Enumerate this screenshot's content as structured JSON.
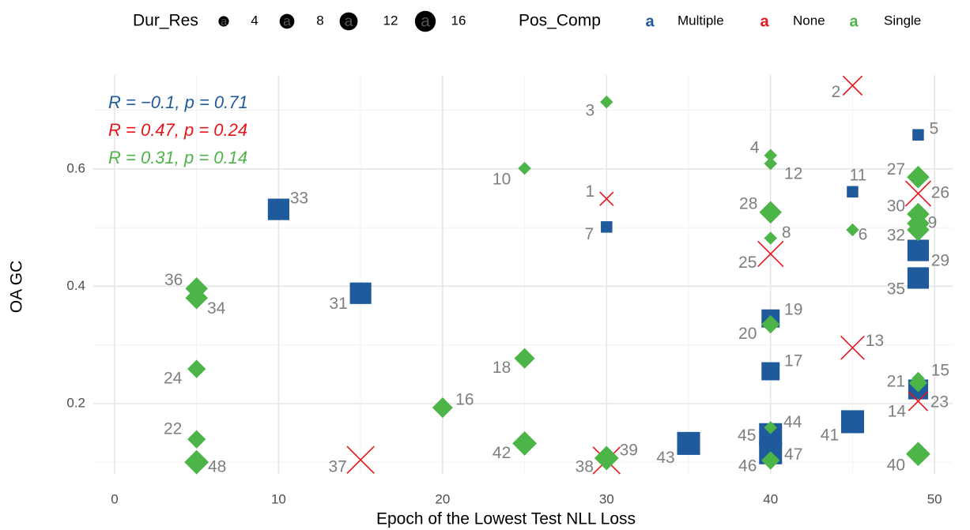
{
  "chart_data": {
    "type": "scatter",
    "x_label": "Epoch of the Lowest Test NLL Loss",
    "y_label": "OA GC",
    "xlim": [
      -1.3,
      51.1
    ],
    "ylim": [
      0.08,
      0.76
    ],
    "xticks": [
      0,
      10,
      20,
      30,
      40,
      50
    ],
    "yticks": [
      0.2,
      0.4,
      0.6
    ],
    "grid": true,
    "legend_position": "top",
    "legend_key_label": "a",
    "size_legend": {
      "title": "Dur_Res",
      "values": [
        4,
        8,
        12,
        16
      ]
    },
    "color_legend_title": "Pos_Comp",
    "series": [
      {
        "name": "Multiple",
        "color": "#1f5a9c",
        "shape": "square",
        "x": [
          49,
          45,
          30,
          10,
          15,
          49,
          49,
          40,
          40,
          49,
          45,
          35,
          40,
          40
        ],
        "y": [
          0.658,
          0.561,
          0.501,
          0.531,
          0.388,
          0.461,
          0.414,
          0.345,
          0.255,
          0.224,
          0.169,
          0.132,
          0.147,
          0.116
        ],
        "sizes": [
          4,
          4,
          4,
          14,
          14,
          14,
          14,
          10,
          10,
          12,
          16,
          16,
          16,
          16
        ],
        "labels": [
          5,
          11,
          7,
          33,
          31,
          29,
          35,
          19,
          17,
          23,
          41,
          43,
          45,
          47
        ]
      },
      {
        "name": "None",
        "color": "#e8141c",
        "shape": "x",
        "x": [
          45,
          30,
          49,
          40,
          45,
          49,
          15,
          30
        ],
        "y": [
          0.742,
          0.549,
          0.558,
          0.455,
          0.295,
          0.204,
          0.104,
          0.103
        ],
        "sizes": [
          8,
          4,
          14,
          14,
          12,
          8,
          16,
          16
        ],
        "labels": [
          2,
          1,
          26,
          25,
          13,
          14,
          37,
          38
        ]
      },
      {
        "name": "Single",
        "color": "#4db548",
        "shape": "diamond",
        "x": [
          30,
          25,
          40,
          40,
          49,
          40,
          49,
          49,
          49,
          45,
          40,
          5,
          5,
          40,
          5,
          25,
          49,
          49,
          20,
          5,
          40,
          25,
          5,
          30,
          40,
          49
        ],
        "y": [
          0.714,
          0.601,
          0.623,
          0.609,
          0.586,
          0.526,
          0.523,
          0.507,
          0.496,
          0.496,
          0.482,
          0.396,
          0.38,
          0.335,
          0.259,
          0.277,
          0.243,
          0.235,
          0.193,
          0.139,
          0.159,
          0.132,
          0.1,
          0.107,
          0.103,
          0.114
        ],
        "sizes": [
          4,
          4,
          4,
          4,
          12,
          12,
          12,
          12,
          12,
          4,
          4,
          12,
          12,
          8,
          8,
          10,
          4,
          8,
          10,
          8,
          4,
          14,
          14,
          14,
          8,
          14
        ],
        "labels": [
          3,
          10,
          4,
          12,
          27,
          28,
          30,
          9,
          32,
          6,
          8,
          36,
          34,
          20,
          24,
          18,
          15,
          21,
          16,
          22,
          44,
          42,
          48,
          39,
          46,
          40
        ]
      }
    ],
    "annotations": [
      {
        "text": "R = −0.1, p = 0.71",
        "color": "#1f5a9c"
      },
      {
        "text": "R = 0.47, p = 0.24",
        "color": "#e8141c"
      },
      {
        "text": "R = 0.31, p = 0.14",
        "color": "#4db548"
      }
    ]
  }
}
